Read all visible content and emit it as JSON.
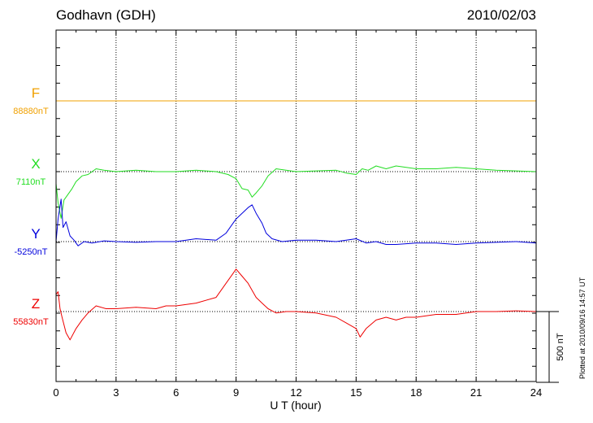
{
  "header": {
    "station": "Godhavn (GDH)",
    "date": "2010/02/03"
  },
  "footer": {
    "plotted": "Plotted at 2010/09/16 14:57 UT"
  },
  "chart_data": {
    "type": "line",
    "xlabel": "U T (hour)",
    "xlim": [
      0,
      24
    ],
    "xticks": [
      "0",
      "3",
      "6",
      "9",
      "12",
      "15",
      "18",
      "21",
      "24"
    ],
    "grid": true,
    "scale_bar": {
      "value": 500,
      "label": "500 nT"
    },
    "units_per_panel_step": 500,
    "series": [
      {
        "name": "F",
        "baseline_label": "88880nT",
        "color": "#f0a000",
        "baseline_slot": 0,
        "x": [
          0,
          24
        ],
        "y": [
          0,
          0
        ]
      },
      {
        "name": "X",
        "baseline_label": "7110nT",
        "color": "#22dd22",
        "baseline_slot": 1,
        "x": [
          0,
          0.1,
          0.25,
          0.4,
          0.6,
          0.8,
          1.0,
          1.3,
          1.6,
          2.0,
          2.4,
          3.0,
          4.0,
          5.0,
          6.0,
          7.0,
          8.0,
          8.6,
          9.0,
          9.3,
          9.6,
          9.8,
          10.0,
          10.3,
          10.6,
          11.0,
          11.5,
          12.0,
          13.0,
          14.0,
          14.5,
          15.0,
          15.3,
          15.6,
          16.0,
          16.5,
          17.0,
          18.0,
          19.0,
          20.0,
          21.0,
          22.0,
          23.0,
          24.0
        ],
        "y": [
          -85,
          -220,
          -330,
          -200,
          -160,
          -120,
          -70,
          -30,
          -20,
          20,
          10,
          0,
          10,
          0,
          0,
          10,
          0,
          -20,
          -50,
          -120,
          -130,
          -180,
          -150,
          -100,
          -30,
          20,
          10,
          0,
          5,
          10,
          -10,
          -20,
          20,
          10,
          40,
          20,
          40,
          20,
          20,
          30,
          20,
          10,
          5,
          0
        ]
      },
      {
        "name": "Y",
        "baseline_label": "-5250nT",
        "color": "#0000dd",
        "baseline_slot": 2,
        "x": [
          0,
          0.1,
          0.25,
          0.35,
          0.5,
          0.7,
          0.9,
          1.1,
          1.4,
          1.8,
          2.4,
          3.0,
          4.0,
          5.0,
          6.0,
          7.0,
          8.0,
          8.5,
          8.8,
          9.0,
          9.3,
          9.6,
          9.8,
          10.0,
          10.3,
          10.5,
          10.8,
          11.3,
          12.0,
          13.0,
          14.0,
          15.0,
          15.5,
          16.0,
          16.5,
          17.0,
          18.0,
          19.0,
          20.0,
          21.0,
          22.0,
          23.0,
          24.0
        ],
        "y": [
          0,
          160,
          300,
          100,
          140,
          40,
          10,
          -30,
          0,
          -10,
          5,
          0,
          -5,
          0,
          0,
          20,
          10,
          60,
          120,
          160,
          200,
          240,
          260,
          200,
          130,
          60,
          20,
          0,
          10,
          10,
          0,
          20,
          -10,
          0,
          -20,
          -20,
          -10,
          -10,
          -20,
          -10,
          -5,
          0,
          -10
        ]
      },
      {
        "name": "Z",
        "baseline_label": "55830nT",
        "color": "#ee0000",
        "baseline_slot": 3,
        "x": [
          0,
          0.1,
          0.2,
          0.3,
          0.5,
          0.7,
          1.0,
          1.3,
          1.6,
          2.0,
          2.5,
          3.0,
          4.0,
          5.0,
          5.5,
          6.0,
          7.0,
          8.0,
          8.5,
          8.8,
          9.0,
          9.3,
          9.6,
          9.8,
          10.0,
          10.3,
          10.6,
          11.0,
          11.5,
          12.0,
          13.0,
          14.0,
          14.5,
          15.0,
          15.2,
          15.5,
          16.0,
          16.5,
          17.0,
          17.5,
          18.0,
          19.0,
          20.0,
          21.0,
          22.0,
          23.0,
          24.0
        ],
        "y": [
          120,
          140,
          20,
          -40,
          -150,
          -200,
          -120,
          -60,
          -10,
          40,
          20,
          20,
          30,
          20,
          40,
          40,
          60,
          100,
          200,
          260,
          300,
          250,
          200,
          150,
          100,
          60,
          20,
          -10,
          0,
          0,
          -10,
          -40,
          -80,
          -120,
          -180,
          -120,
          -60,
          -40,
          -60,
          -40,
          -40,
          -20,
          -20,
          0,
          0,
          5,
          0
        ]
      }
    ]
  }
}
